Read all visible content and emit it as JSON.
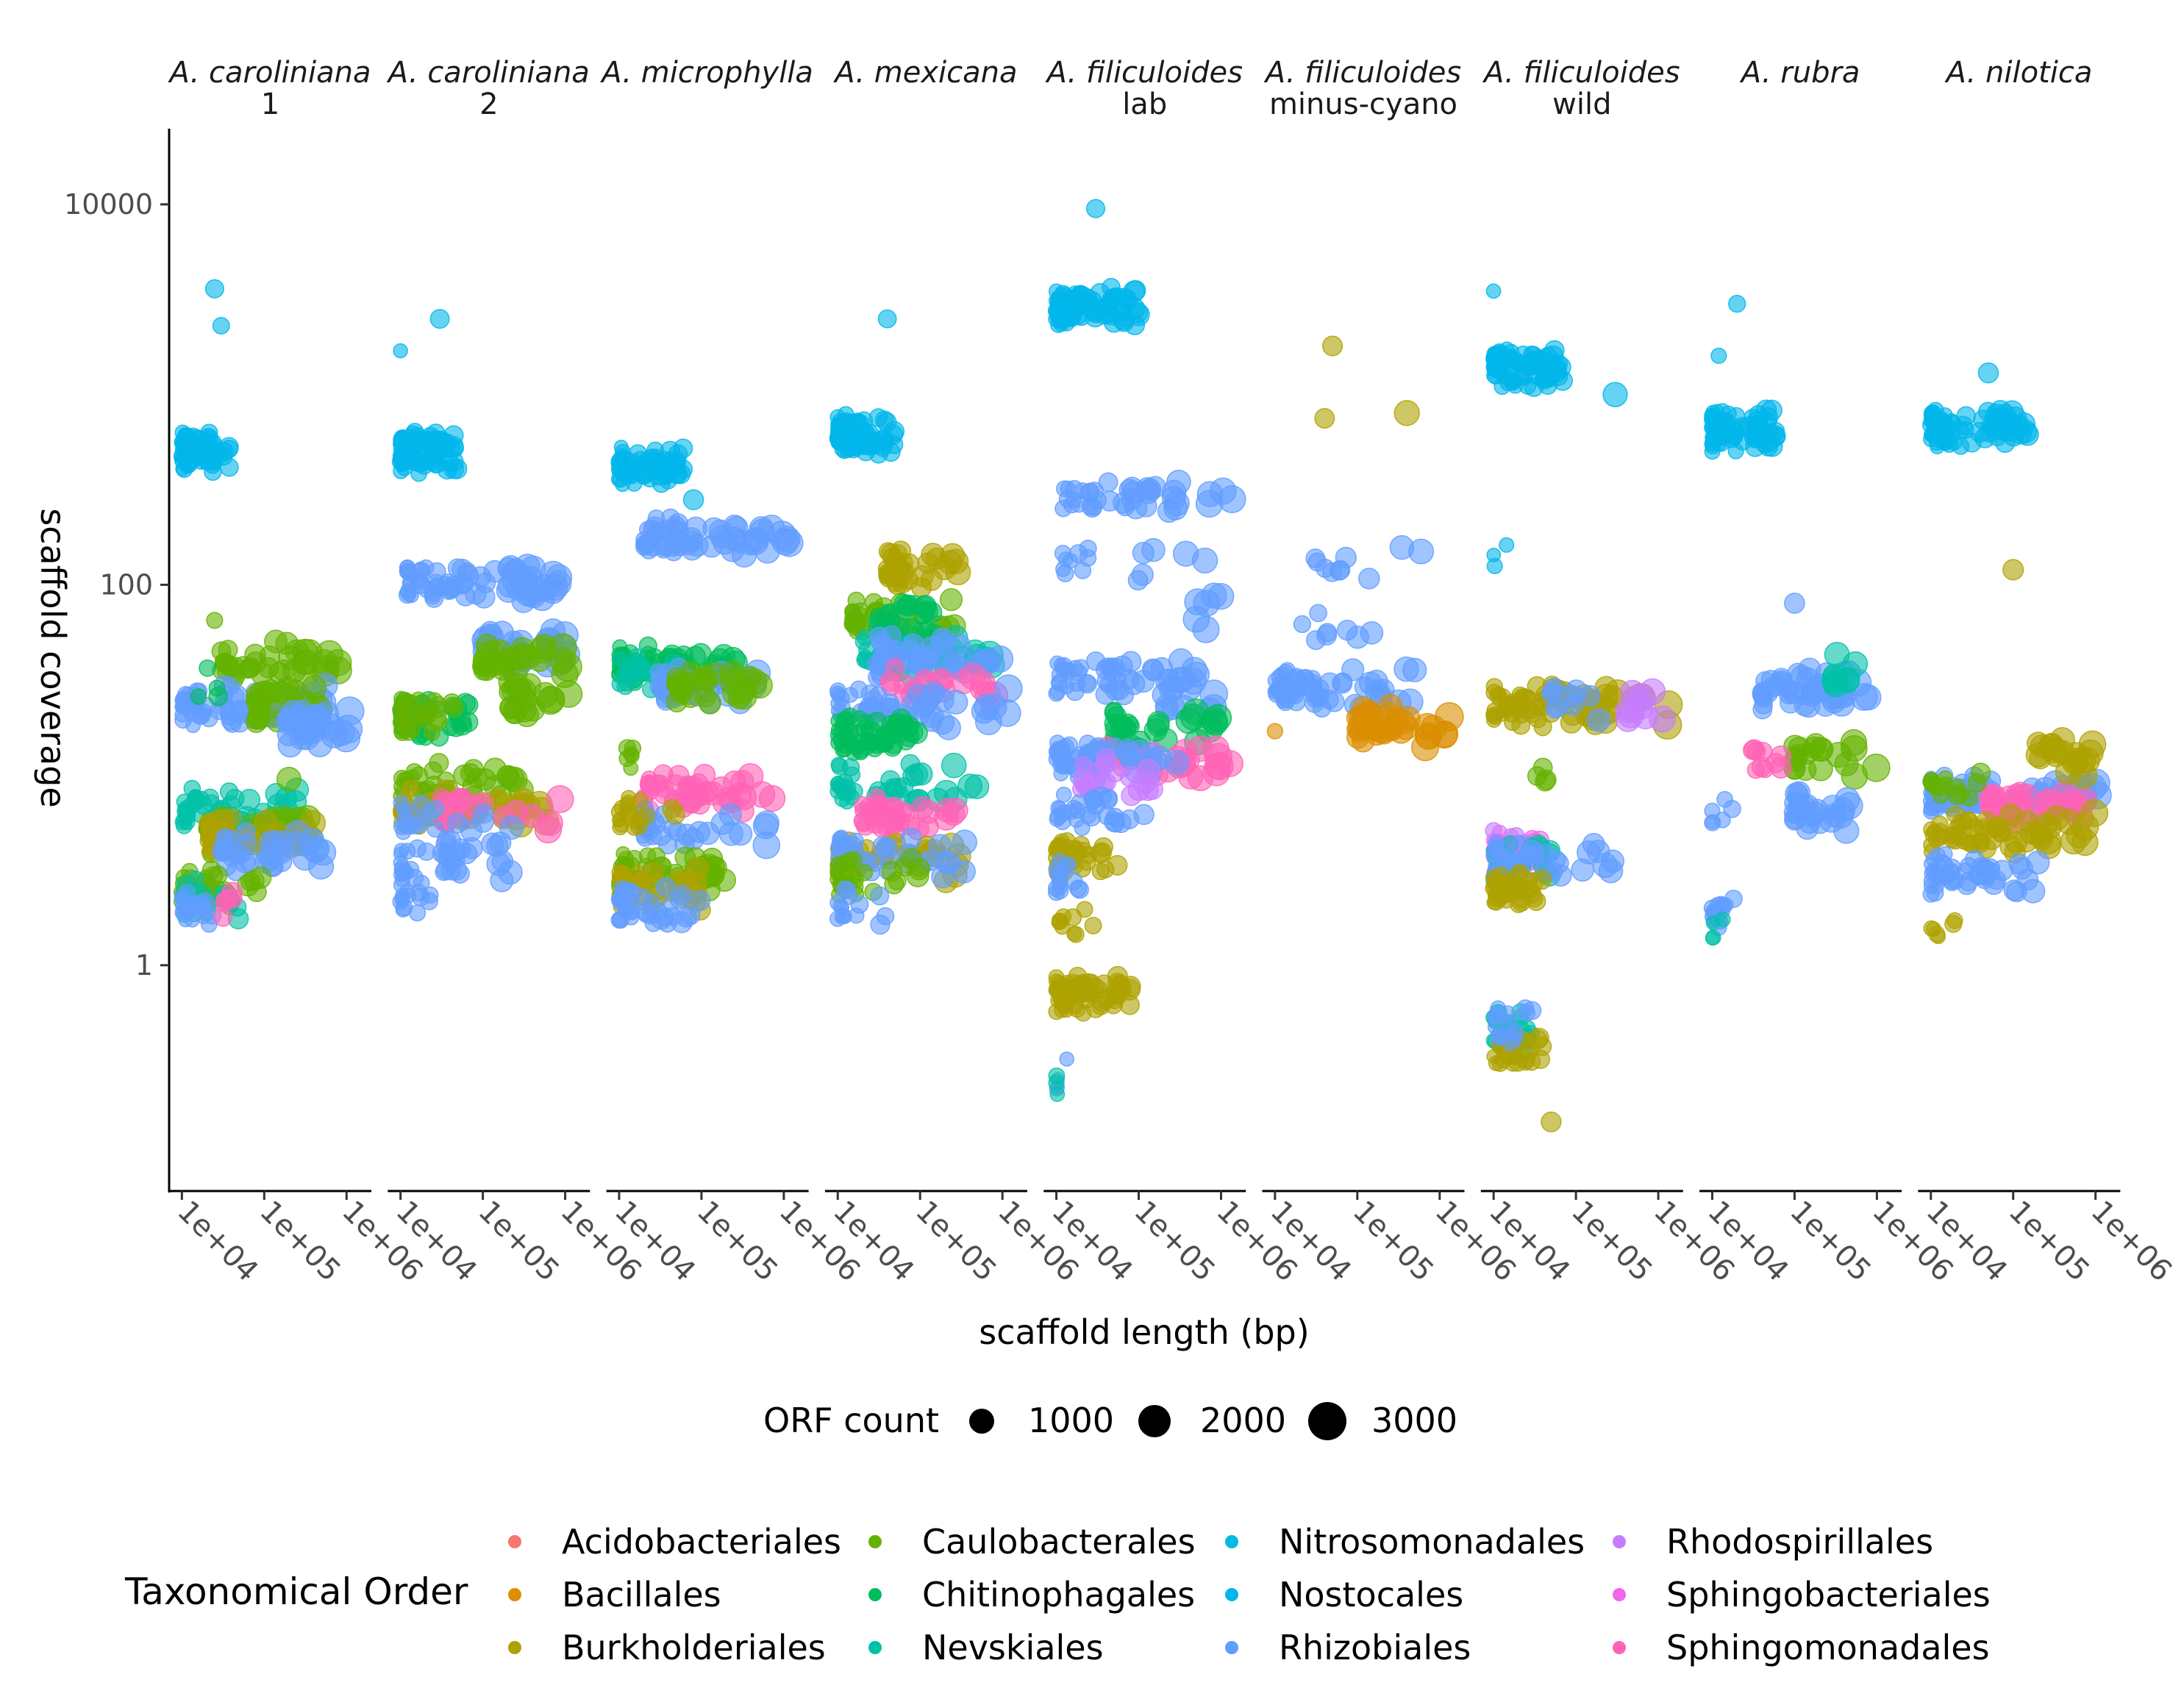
{
  "chart_data": {
    "type": "scatter",
    "xlabel": "scaffold length (bp)",
    "ylabel": "scaffold coverage",
    "x_scale": "log10",
    "y_scale": "log10",
    "xlim": [
      7000,
      2000000
    ],
    "ylim": [
      0.065,
      25000
    ],
    "x_ticks": [
      10000,
      100000,
      1000000
    ],
    "x_tick_labels": [
      "1e+04",
      "1e+05",
      "1e+06"
    ],
    "y_ticks": [
      1,
      100,
      10000
    ],
    "y_tick_labels": [
      "1",
      "100",
      "10000"
    ],
    "grid": false,
    "facets": [
      {
        "species": "A. caroliniana",
        "sub": "1"
      },
      {
        "species": "A. caroliniana",
        "sub": "2"
      },
      {
        "species": "A. microphylla",
        "sub": ""
      },
      {
        "species": "A. mexicana",
        "sub": ""
      },
      {
        "species": "A. filiculoides",
        "sub": "lab"
      },
      {
        "species": "A. filiculoides",
        "sub": "minus-cyano"
      },
      {
        "species": "A. filiculoides",
        "sub": "wild"
      },
      {
        "species": "A. rubra",
        "sub": ""
      },
      {
        "species": "A. nilotica",
        "sub": ""
      }
    ],
    "orders": [
      {
        "name": "Acidobacteriales",
        "color": "#F8766D"
      },
      {
        "name": "Bacillales",
        "color": "#DB8E00"
      },
      {
        "name": "Burkholderiales",
        "color": "#AEA200"
      },
      {
        "name": "Caulobacterales",
        "color": "#64B200"
      },
      {
        "name": "Chitinophagales",
        "color": "#00BD5C"
      },
      {
        "name": "Nevskiales",
        "color": "#00C1A7"
      },
      {
        "name": "Nitrosomonadales",
        "color": "#00BADE"
      },
      {
        "name": "Nostocales",
        "color": "#00B6EB"
      },
      {
        "name": "Rhizobiales",
        "color": "#619CFF"
      },
      {
        "name": "Rhodospirillales",
        "color": "#C77CFF"
      },
      {
        "name": "Sphingobacteriales",
        "color": "#EF67EB"
      },
      {
        "name": "Sphingomonadales",
        "color": "#FF63B6"
      }
    ],
    "size_legend": {
      "title": "ORF count",
      "values": [
        1000,
        2000,
        3000
      ],
      "labels": [
        "1000",
        "2000",
        "3000"
      ]
    },
    "color_legend_title": "Taxonomical Order",
    "clusters_note_fields": [
      "facet",
      "order",
      "coverage",
      "length_min",
      "length_max",
      "count"
    ],
    "clusters": [
      [
        0,
        "Nostocales",
        500,
        10000,
        40000,
        80
      ],
      [
        0,
        "Nostocales",
        3600,
        25000,
        25000,
        1
      ],
      [
        0,
        "Nostocales",
        2300,
        30000,
        30000,
        1
      ],
      [
        0,
        "Caulobacterales",
        40,
        30000,
        1000000,
        40
      ],
      [
        0,
        "Caulobacterales",
        65,
        25000,
        25000,
        1
      ],
      [
        0,
        "Rhizobiales",
        23,
        10000,
        600000,
        70
      ],
      [
        0,
        "Caulobacterales",
        24,
        80000,
        500000,
        30
      ],
      [
        0,
        "Rhizobiales",
        18,
        200000,
        1200000,
        30
      ],
      [
        0,
        "Chitinophagales",
        30,
        15000,
        30000,
        4
      ],
      [
        0,
        "Nevskiales",
        6.6,
        10000,
        300000,
        50
      ],
      [
        0,
        "Caulobacterales",
        5,
        20000,
        400000,
        50
      ],
      [
        0,
        "Burkholderiales",
        4.8,
        20000,
        400000,
        40
      ],
      [
        0,
        "Caulobacterales",
        9.5,
        200000,
        200000,
        1
      ],
      [
        0,
        "Rhizobiales",
        4,
        30000,
        600000,
        35
      ],
      [
        0,
        "Caulobacterales",
        2.5,
        10000,
        100000,
        40
      ],
      [
        0,
        "Nevskiales",
        2.2,
        10000,
        50000,
        20
      ],
      [
        0,
        "Rhizobiales",
        2,
        10000,
        25000,
        20
      ],
      [
        0,
        "Sphingomonadales",
        2.1,
        30000,
        50000,
        6
      ],
      [
        1,
        "Nostocales",
        500,
        10000,
        50000,
        80
      ],
      [
        1,
        "Nostocales",
        2500,
        30000,
        30000,
        1
      ],
      [
        1,
        "Nostocales",
        1700,
        10000,
        10000,
        1
      ],
      [
        1,
        "Rhizobiales",
        100,
        12000,
        1000000,
        70
      ],
      [
        1,
        "Rhizobiales",
        45,
        100000,
        1200000,
        30
      ],
      [
        1,
        "Caulobacterales",
        40,
        100000,
        1200000,
        30
      ],
      [
        1,
        "Caulobacterales",
        25,
        200000,
        1200000,
        20
      ],
      [
        1,
        "Chitinophagales",
        20,
        10000,
        80000,
        50
      ],
      [
        1,
        "Caulobacterales",
        20,
        10000,
        50000,
        30
      ],
      [
        1,
        "Caulobacterales",
        9,
        10000,
        300000,
        40
      ],
      [
        1,
        "Burkholderiales",
        6.6,
        10000,
        600000,
        50
      ],
      [
        1,
        "Sphingomonadales",
        6.6,
        30000,
        1000000,
        20
      ],
      [
        1,
        "Rhizobiales",
        6,
        10000,
        300000,
        20
      ],
      [
        1,
        "Rhizobiales",
        3.6,
        10000,
        250000,
        40
      ],
      [
        1,
        "Rhizobiales",
        2.2,
        10000,
        30000,
        15
      ],
      [
        2,
        "Nostocales",
        420,
        10000,
        60000,
        70
      ],
      [
        2,
        "Nostocales",
        280,
        80000,
        80000,
        1
      ],
      [
        2,
        "Rhizobiales",
        175,
        20000,
        1500000,
        60
      ],
      [
        2,
        "Chitinophagales",
        38,
        10000,
        300000,
        60
      ],
      [
        2,
        "Nevskiales",
        33,
        10000,
        50000,
        20
      ],
      [
        2,
        "Rhizobiales",
        30,
        30000,
        600000,
        40
      ],
      [
        2,
        "Caulobacterales",
        30,
        50000,
        700000,
        30
      ],
      [
        2,
        "Sphingomonadales",
        8,
        20000,
        800000,
        50
      ],
      [
        2,
        "Rhizobiales",
        5.2,
        20000,
        700000,
        30
      ],
      [
        2,
        "Burkholderiales",
        6.5,
        10000,
        50000,
        20
      ],
      [
        2,
        "Caulobacterales",
        3,
        10000,
        200000,
        60
      ],
      [
        2,
        "Burkholderiales",
        2.5,
        10000,
        100000,
        40
      ],
      [
        2,
        "Rhizobiales",
        2,
        10000,
        100000,
        40
      ],
      [
        2,
        "Caulobacterales",
        12,
        12000,
        15000,
        6
      ],
      [
        3,
        "Nostocales",
        600,
        10000,
        50000,
        80
      ],
      [
        3,
        "Nostocales",
        2500,
        40000,
        40000,
        1
      ],
      [
        3,
        "Burkholderiales",
        125,
        40000,
        400000,
        40
      ],
      [
        3,
        "Caulobacterales",
        66,
        15000,
        300000,
        40
      ],
      [
        3,
        "Chitinophagales",
        66,
        30000,
        200000,
        30
      ],
      [
        3,
        "Nevskiales",
        42,
        20000,
        800000,
        40
      ],
      [
        3,
        "Rhizobiales",
        42,
        30000,
        1000000,
        40
      ],
      [
        3,
        "Sphingomonadales",
        30,
        40000,
        900000,
        20
      ],
      [
        3,
        "Rhizobiales",
        22,
        10000,
        1200000,
        50
      ],
      [
        3,
        "Chitinophagales",
        16,
        10000,
        100000,
        60
      ],
      [
        3,
        "Nevskiales",
        9,
        10000,
        500000,
        40
      ],
      [
        3,
        "Sphingomonadales",
        6,
        20000,
        400000,
        40
      ],
      [
        3,
        "Burkholderiales",
        3.6,
        10000,
        300000,
        40
      ],
      [
        3,
        "Rhizobiales",
        3.7,
        10000,
        400000,
        40
      ],
      [
        3,
        "Caulobacterales",
        3,
        10000,
        100000,
        30
      ],
      [
        3,
        "Rhizobiales",
        2,
        10000,
        40000,
        15
      ],
      [
        4,
        "Nostocales",
        2900,
        10000,
        100000,
        80
      ],
      [
        4,
        "Nostocales",
        9500,
        30000,
        30000,
        1
      ],
      [
        4,
        "Rhizobiales",
        290,
        12000,
        1500000,
        40
      ],
      [
        4,
        "Rhizobiales",
        130,
        12000,
        1000000,
        15
      ],
      [
        4,
        "Rhizobiales",
        75,
        500000,
        1000000,
        6
      ],
      [
        4,
        "Rhizobiales",
        33,
        10000,
        600000,
        50
      ],
      [
        4,
        "Rhizobiales",
        25,
        200000,
        1200000,
        10
      ],
      [
        4,
        "Chitinophagales",
        17,
        50000,
        1000000,
        30
      ],
      [
        4,
        "Sphingomonadales",
        12,
        30000,
        1500000,
        40
      ],
      [
        4,
        "Rhizobiales",
        12,
        10000,
        300000,
        60
      ],
      [
        4,
        "Rhodospirillales",
        10,
        20000,
        200000,
        20
      ],
      [
        4,
        "Rhizobiales",
        6.5,
        10000,
        200000,
        30
      ],
      [
        4,
        "Burkholderiales",
        3.6,
        10000,
        60000,
        40
      ],
      [
        4,
        "Rhizobiales",
        2.8,
        10000,
        20000,
        15
      ],
      [
        4,
        "Burkholderiales",
        0.7,
        10000,
        80000,
        70
      ],
      [
        4,
        "Burkholderiales",
        1.7,
        10000,
        30000,
        10
      ],
      [
        4,
        "Rhizobiales",
        0.25,
        10000,
        20000,
        4
      ],
      [
        4,
        "Nevskiales",
        0.25,
        10000,
        12000,
        3
      ],
      [
        5,
        "Rhizobiales",
        28,
        10000,
        500000,
        60
      ],
      [
        5,
        "Bacillales",
        18,
        100000,
        1500000,
        40
      ],
      [
        5,
        "Burkholderiales",
        1800,
        50000,
        50000,
        1
      ],
      [
        5,
        "Burkholderiales",
        750,
        40000,
        40000,
        1
      ],
      [
        5,
        "Burkholderiales",
        800,
        400000,
        400000,
        1
      ],
      [
        5,
        "Rhizobiales",
        130,
        30000,
        800000,
        10
      ],
      [
        5,
        "Rhizobiales",
        60,
        20000,
        800000,
        8
      ],
      [
        5,
        "Bacillales",
        17,
        10000,
        10000,
        1
      ],
      [
        6,
        "Nostocales",
        1400,
        10000,
        70000,
        80
      ],
      [
        6,
        "Nostocales",
        3500,
        10000,
        10000,
        1
      ],
      [
        6,
        "Nostocales",
        1000,
        300000,
        300000,
        1
      ],
      [
        6,
        "Nostocales",
        145,
        10000,
        20000,
        3
      ],
      [
        6,
        "Burkholderiales",
        23,
        10000,
        1500000,
        80
      ],
      [
        6,
        "Rhodospirillales",
        23,
        300000,
        1500000,
        10
      ],
      [
        6,
        "Rhizobiales",
        25,
        50000,
        200000,
        10
      ],
      [
        6,
        "Sphingobacteriales",
        4,
        10000,
        40000,
        30
      ],
      [
        6,
        "Rhodospirillales",
        4,
        10000,
        40000,
        20
      ],
      [
        6,
        "Nevskiales",
        3.5,
        10000,
        50000,
        30
      ],
      [
        6,
        "Rhizobiales",
        3.5,
        10000,
        300000,
        40
      ],
      [
        6,
        "Burkholderiales",
        2.5,
        10000,
        40000,
        40
      ],
      [
        6,
        "Nevskiales",
        0.45,
        10000,
        30000,
        30
      ],
      [
        6,
        "Burkholderiales",
        0.35,
        10000,
        40000,
        25
      ],
      [
        6,
        "Rhizobiales",
        0.5,
        10000,
        30000,
        15
      ],
      [
        6,
        "Burkholderiales",
        0.15,
        50000,
        50000,
        1
      ],
      [
        6,
        "Caulobacterales",
        10,
        30000,
        50000,
        4
      ],
      [
        7,
        "Nostocales",
        650,
        10000,
        60000,
        80
      ],
      [
        7,
        "Nostocales",
        3000,
        20000,
        20000,
        1
      ],
      [
        7,
        "Nostocales",
        1600,
        12000,
        12000,
        1
      ],
      [
        7,
        "Rhizobiales",
        28,
        40000,
        1000000,
        50
      ],
      [
        7,
        "Nevskiales",
        35,
        300000,
        600000,
        8
      ],
      [
        7,
        "Caulobacterales",
        12,
        100000,
        1000000,
        20
      ],
      [
        7,
        "Sphingomonadales",
        12,
        30000,
        80000,
        10
      ],
      [
        7,
        "Rhizobiales",
        6.5,
        100000,
        500000,
        30
      ],
      [
        7,
        "Rhizobiales",
        6.5,
        10000,
        20000,
        6
      ],
      [
        7,
        "Rhizobiales",
        2,
        10000,
        20000,
        15
      ],
      [
        7,
        "Nevskiales",
        1.6,
        10000,
        15000,
        4
      ],
      [
        7,
        "Rhizobiales",
        80,
        100000,
        100000,
        1
      ],
      [
        8,
        "Nostocales",
        650,
        10000,
        150000,
        80
      ],
      [
        8,
        "Nostocales",
        1300,
        50000,
        50000,
        1
      ],
      [
        8,
        "Burkholderiales",
        120,
        100000,
        100000,
        1
      ],
      [
        8,
        "Rhizobiales",
        8,
        10000,
        1200000,
        80
      ],
      [
        8,
        "Sphingomonadales",
        7,
        50000,
        800000,
        40
      ],
      [
        8,
        "Burkholderiales",
        5,
        10000,
        1000000,
        60
      ],
      [
        8,
        "Caulobacterales",
        9,
        10000,
        50000,
        15
      ],
      [
        8,
        "Rhizobiales",
        3,
        10000,
        200000,
        50
      ],
      [
        8,
        "Burkholderiales",
        13,
        200000,
        1500000,
        20
      ],
      [
        8,
        "Burkholderiales",
        1.5,
        10000,
        20000,
        6
      ]
    ]
  }
}
